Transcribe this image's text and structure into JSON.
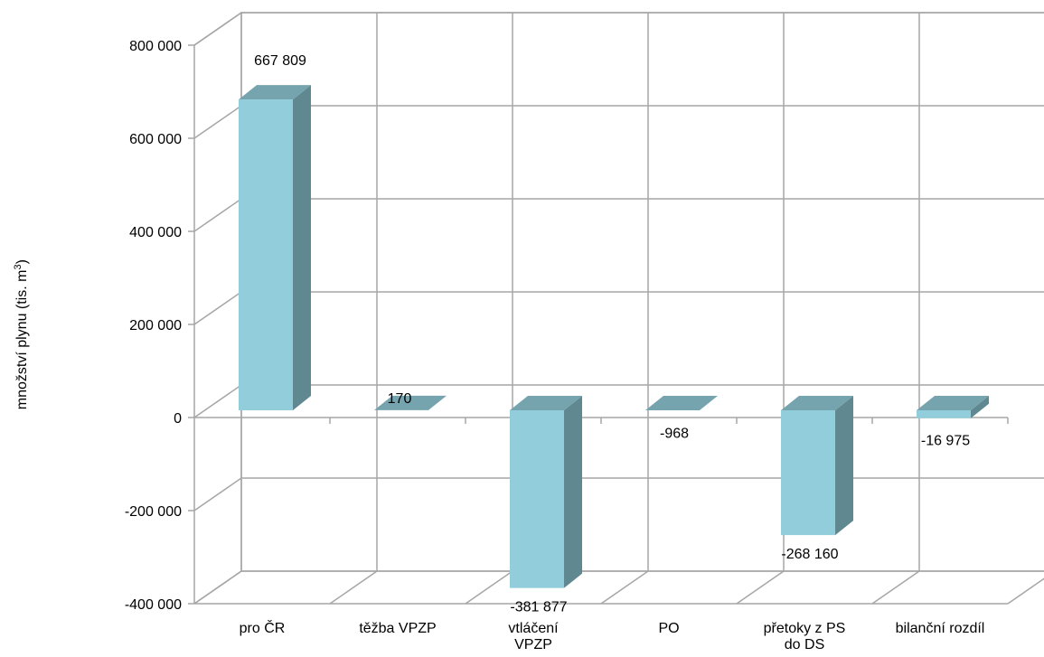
{
  "chart_data": {
    "type": "bar",
    "categories": [
      "pro ČR",
      "těžba VPZP",
      "vtláčení VPZP",
      "PO",
      "přetoky z PS do DS",
      "bilanční rozdíl"
    ],
    "category_lines": [
      [
        "pro ČR"
      ],
      [
        "těžba VPZP"
      ],
      [
        "vtláčení",
        "VPZP"
      ],
      [
        "PO"
      ],
      [
        "přetoky z PS",
        "do DS"
      ],
      [
        "bilanční rozdíl"
      ]
    ],
    "values": [
      667809,
      170,
      -381877,
      -968,
      -268160,
      -16975
    ],
    "data_labels": [
      "667 809",
      "170",
      "-381 877",
      "-968",
      "-268 160",
      "-16 975"
    ],
    "y_ticks": [
      {
        "value": 800000,
        "label": "800 000"
      },
      {
        "value": 600000,
        "label": "600 000"
      },
      {
        "value": 400000,
        "label": "400 000"
      },
      {
        "value": 200000,
        "label": "200 000"
      },
      {
        "value": 0,
        "label": "0"
      },
      {
        "value": -200000,
        "label": "-200 000"
      },
      {
        "value": -400000,
        "label": "-400 000"
      }
    ],
    "ylim": [
      -400000,
      800000
    ],
    "ylabel": "množství plynu (tis. m",
    "ylabel_sup": "3",
    "ylabel_suffix": ")",
    "grid": true,
    "colors": {
      "front": "#92CDDC",
      "side": "#5F8891",
      "top": "#75A4AE",
      "grid": "#A6A6A6"
    }
  }
}
